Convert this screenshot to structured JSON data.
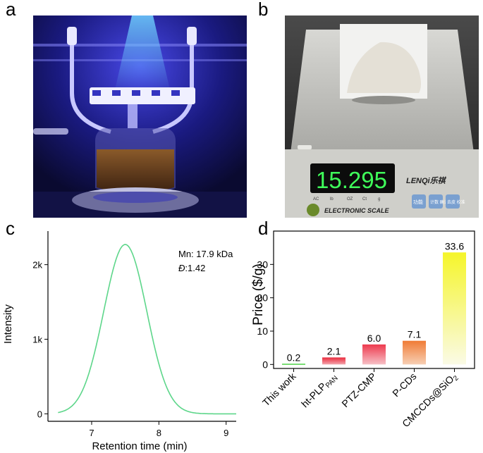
{
  "panels": {
    "a": {
      "letter": "a"
    },
    "b": {
      "letter": "b",
      "scale_display": "15.295",
      "scale_brand": "LENQi乐祺",
      "scale_label": "ELECTRONIC SCALE",
      "scale_units": [
        "AC",
        "lb",
        "OZ",
        "Ct",
        "g"
      ],
      "scale_buttons": [
        "功能",
        "计数\n确认",
        "去皮\n校准"
      ]
    },
    "c": {
      "letter": "c"
    },
    "d": {
      "letter": "d"
    }
  },
  "chart_data": [
    {
      "type": "line",
      "panel": "c",
      "xlabel": "Retention time (min)",
      "ylabel": "Intensity",
      "xlim": [
        6.35,
        9.15
      ],
      "ylim": [
        -100,
        2450
      ],
      "xticks": [
        "7",
        "8",
        "9"
      ],
      "xtick_values": [
        7,
        8,
        9
      ],
      "yticks": [
        "0",
        "1k",
        "2k"
      ],
      "ytick_values": [
        0,
        1000,
        2000
      ],
      "series": [
        {
          "name": "GPC trace",
          "color": "#5dd68a",
          "peak_x": 7.5,
          "peak_y": 2270,
          "sigma": 0.32,
          "x_start": 6.5,
          "x_end": 9.15
        }
      ],
      "annotations": [
        "Mn: 17.9 kDa",
        ":1.42"
      ],
      "dispersity_symbol": "Đ"
    },
    {
      "type": "bar",
      "panel": "d",
      "ylabel": "Price ($/g)",
      "ylim": [
        -1.2,
        40
      ],
      "yticks": [
        "0",
        "10",
        "20",
        "30"
      ],
      "ytick_values": [
        0,
        10,
        20,
        30
      ],
      "categories": [
        {
          "main": "This work",
          "sub": "",
          "tail": ""
        },
        {
          "main": "ht-PLP",
          "sub": "PAN",
          "tail": ""
        },
        {
          "main": "PTZ-CMP",
          "sub": "",
          "tail": ""
        },
        {
          "main": "P-CDs",
          "sub": "",
          "tail": ""
        },
        {
          "main": "CMCCDs@SiO",
          "sub": "2",
          "tail": ""
        }
      ],
      "values": [
        0.2,
        2.1,
        6.0,
        7.1,
        33.6
      ],
      "value_labels": [
        "0.2",
        "2.1",
        "6.0",
        "7.1",
        "33.6"
      ],
      "bar_colors": [
        [
          "#22c41e",
          "#78e070"
        ],
        [
          "#ea2a3c",
          "#f3a6ae"
        ],
        [
          "#ee3a4e",
          "#f6c0c6"
        ],
        [
          "#f07c36",
          "#f7cfb4"
        ],
        [
          "#f5f52a",
          "#fafae6"
        ]
      ]
    }
  ]
}
